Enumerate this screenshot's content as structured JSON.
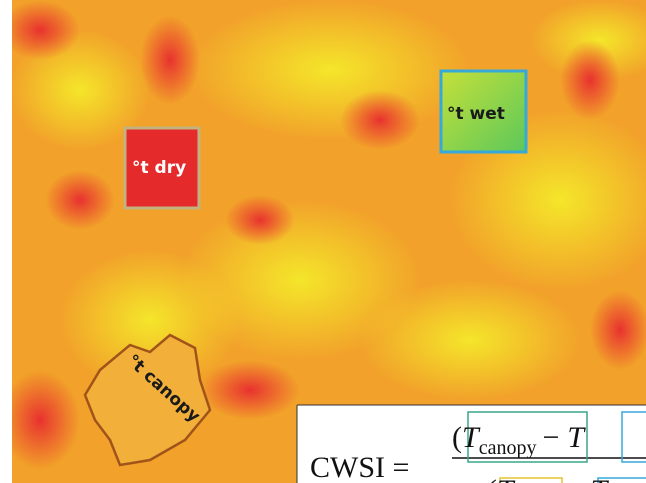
{
  "labels": {
    "dry": "°t dry",
    "wet": "°t wet",
    "canopy": "°t canopy"
  },
  "formula": {
    "lhs": "CWSI =",
    "numerator": {
      "open": "(",
      "t1": "T",
      "sub1": "canopy",
      "op": "−",
      "t2": "T"
    },
    "denominator": {
      "open": "−(",
      "t1": "T",
      "op": "−",
      "t2": "T"
    }
  }
}
